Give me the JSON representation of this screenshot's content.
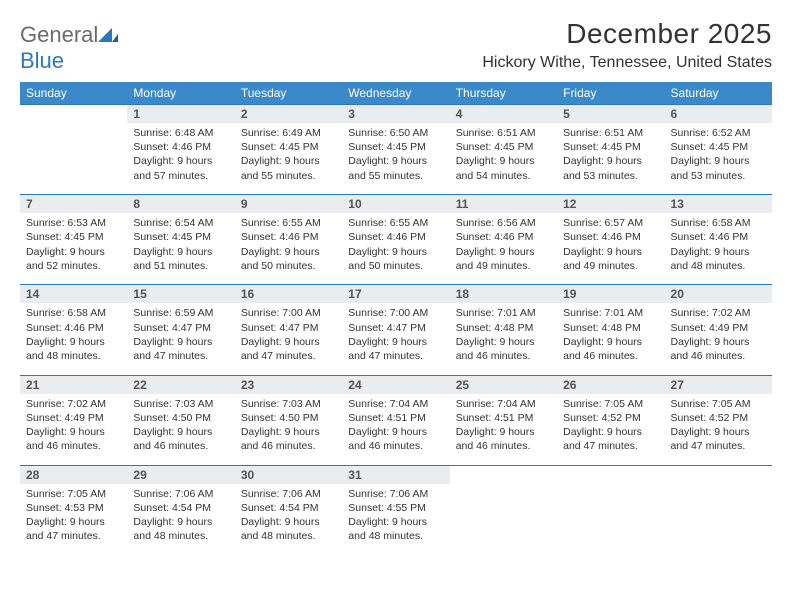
{
  "brand": {
    "word1": "General",
    "word2": "Blue"
  },
  "title": "December 2025",
  "subtitle": "Hickory Withe, Tennessee, United States",
  "colors": {
    "header_bg": "#3b89c9",
    "rule": "#2b78c2",
    "daynum_bg": "#e9edf0"
  },
  "weekdays": [
    "Sunday",
    "Monday",
    "Tuesday",
    "Wednesday",
    "Thursday",
    "Friday",
    "Saturday"
  ],
  "weeks": [
    {
      "nums": [
        "",
        "1",
        "2",
        "3",
        "4",
        "5",
        "6"
      ],
      "cells": [
        null,
        {
          "sunrise": "6:48 AM",
          "sunset": "4:46 PM",
          "day": "9 hours and 57 minutes."
        },
        {
          "sunrise": "6:49 AM",
          "sunset": "4:45 PM",
          "day": "9 hours and 55 minutes."
        },
        {
          "sunrise": "6:50 AM",
          "sunset": "4:45 PM",
          "day": "9 hours and 55 minutes."
        },
        {
          "sunrise": "6:51 AM",
          "sunset": "4:45 PM",
          "day": "9 hours and 54 minutes."
        },
        {
          "sunrise": "6:51 AM",
          "sunset": "4:45 PM",
          "day": "9 hours and 53 minutes."
        },
        {
          "sunrise": "6:52 AM",
          "sunset": "4:45 PM",
          "day": "9 hours and 53 minutes."
        }
      ]
    },
    {
      "nums": [
        "7",
        "8",
        "9",
        "10",
        "11",
        "12",
        "13"
      ],
      "cells": [
        {
          "sunrise": "6:53 AM",
          "sunset": "4:45 PM",
          "day": "9 hours and 52 minutes."
        },
        {
          "sunrise": "6:54 AM",
          "sunset": "4:45 PM",
          "day": "9 hours and 51 minutes."
        },
        {
          "sunrise": "6:55 AM",
          "sunset": "4:46 PM",
          "day": "9 hours and 50 minutes."
        },
        {
          "sunrise": "6:55 AM",
          "sunset": "4:46 PM",
          "day": "9 hours and 50 minutes."
        },
        {
          "sunrise": "6:56 AM",
          "sunset": "4:46 PM",
          "day": "9 hours and 49 minutes."
        },
        {
          "sunrise": "6:57 AM",
          "sunset": "4:46 PM",
          "day": "9 hours and 49 minutes."
        },
        {
          "sunrise": "6:58 AM",
          "sunset": "4:46 PM",
          "day": "9 hours and 48 minutes."
        }
      ]
    },
    {
      "nums": [
        "14",
        "15",
        "16",
        "17",
        "18",
        "19",
        "20"
      ],
      "cells": [
        {
          "sunrise": "6:58 AM",
          "sunset": "4:46 PM",
          "day": "9 hours and 48 minutes."
        },
        {
          "sunrise": "6:59 AM",
          "sunset": "4:47 PM",
          "day": "9 hours and 47 minutes."
        },
        {
          "sunrise": "7:00 AM",
          "sunset": "4:47 PM",
          "day": "9 hours and 47 minutes."
        },
        {
          "sunrise": "7:00 AM",
          "sunset": "4:47 PM",
          "day": "9 hours and 47 minutes."
        },
        {
          "sunrise": "7:01 AM",
          "sunset": "4:48 PM",
          "day": "9 hours and 46 minutes."
        },
        {
          "sunrise": "7:01 AM",
          "sunset": "4:48 PM",
          "day": "9 hours and 46 minutes."
        },
        {
          "sunrise": "7:02 AM",
          "sunset": "4:49 PM",
          "day": "9 hours and 46 minutes."
        }
      ]
    },
    {
      "nums": [
        "21",
        "22",
        "23",
        "24",
        "25",
        "26",
        "27"
      ],
      "cells": [
        {
          "sunrise": "7:02 AM",
          "sunset": "4:49 PM",
          "day": "9 hours and 46 minutes."
        },
        {
          "sunrise": "7:03 AM",
          "sunset": "4:50 PM",
          "day": "9 hours and 46 minutes."
        },
        {
          "sunrise": "7:03 AM",
          "sunset": "4:50 PM",
          "day": "9 hours and 46 minutes."
        },
        {
          "sunrise": "7:04 AM",
          "sunset": "4:51 PM",
          "day": "9 hours and 46 minutes."
        },
        {
          "sunrise": "7:04 AM",
          "sunset": "4:51 PM",
          "day": "9 hours and 46 minutes."
        },
        {
          "sunrise": "7:05 AM",
          "sunset": "4:52 PM",
          "day": "9 hours and 47 minutes."
        },
        {
          "sunrise": "7:05 AM",
          "sunset": "4:52 PM",
          "day": "9 hours and 47 minutes."
        }
      ]
    },
    {
      "nums": [
        "28",
        "29",
        "30",
        "31",
        "",
        "",
        ""
      ],
      "cells": [
        {
          "sunrise": "7:05 AM",
          "sunset": "4:53 PM",
          "day": "9 hours and 47 minutes."
        },
        {
          "sunrise": "7:06 AM",
          "sunset": "4:54 PM",
          "day": "9 hours and 48 minutes."
        },
        {
          "sunrise": "7:06 AM",
          "sunset": "4:54 PM",
          "day": "9 hours and 48 minutes."
        },
        {
          "sunrise": "7:06 AM",
          "sunset": "4:55 PM",
          "day": "9 hours and 48 minutes."
        },
        null,
        null,
        null
      ]
    }
  ],
  "labels": {
    "sunrise": "Sunrise:",
    "sunset": "Sunset:",
    "daylight": "Daylight:"
  }
}
